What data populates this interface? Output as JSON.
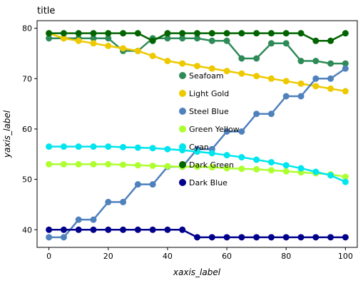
{
  "chart_data": {
    "type": "line",
    "title": "title",
    "xlabel": "xaxis_label",
    "ylabel": "yaxis_label",
    "xlim": [
      -4,
      104
    ],
    "ylim": [
      36.5,
      81.5
    ],
    "xticks": [
      0,
      20,
      40,
      60,
      80,
      100
    ],
    "yticks": [
      40,
      50,
      60,
      70,
      80
    ],
    "grid": false,
    "legend_position": "center-right",
    "x": [
      0,
      5,
      10,
      15,
      20,
      25,
      30,
      35,
      40,
      45,
      50,
      55,
      60,
      65,
      70,
      75,
      80,
      85,
      90,
      95,
      100
    ],
    "series": [
      {
        "name": "Seafoam",
        "color": "#2e8b57",
        "values": [
          78.0,
          78.0,
          78.0,
          78.0,
          78.0,
          75.5,
          75.5,
          78.0,
          78.0,
          78.0,
          78.0,
          77.5,
          77.5,
          74.0,
          74.0,
          77.0,
          77.0,
          73.5,
          73.5,
          73.0,
          73.0
        ]
      },
      {
        "name": "Light Gold",
        "color": "#eec900",
        "values": [
          79.0,
          78.0,
          77.5,
          77.0,
          76.5,
          76.0,
          75.5,
          74.5,
          73.5,
          73.0,
          72.5,
          72.0,
          71.5,
          71.0,
          70.5,
          70.0,
          69.5,
          69.0,
          68.5,
          68.0,
          67.5
        ]
      },
      {
        "name": "Steel Blue",
        "color": "#4f81bd",
        "values": [
          38.5,
          38.5,
          42.0,
          42.0,
          45.5,
          45.5,
          49.0,
          49.0,
          52.5,
          52.5,
          56.0,
          56.0,
          59.5,
          59.5,
          63.0,
          63.0,
          66.5,
          66.5,
          70.0,
          70.0,
          72.0
        ]
      },
      {
        "name": "Green Yellow",
        "color": "#adff2f",
        "values": [
          53.0,
          53.0,
          53.0,
          53.0,
          53.0,
          52.9,
          52.8,
          52.7,
          52.6,
          52.5,
          52.5,
          52.4,
          52.2,
          52.1,
          52.0,
          51.8,
          51.6,
          51.4,
          51.2,
          51.0,
          50.5
        ]
      },
      {
        "name": "Cyan",
        "color": "#00e5ee",
        "values": [
          56.5,
          56.5,
          56.5,
          56.5,
          56.5,
          56.4,
          56.3,
          56.2,
          56.0,
          55.8,
          55.5,
          55.2,
          54.8,
          54.4,
          53.9,
          53.4,
          52.8,
          52.2,
          51.5,
          50.8,
          49.5
        ]
      },
      {
        "name": "Dark Green",
        "color": "#006400",
        "values": [
          79.0,
          79.0,
          79.0,
          79.0,
          79.0,
          79.0,
          79.0,
          77.5,
          79.0,
          79.0,
          79.0,
          79.0,
          79.0,
          79.0,
          79.0,
          79.0,
          79.0,
          79.0,
          77.5,
          77.5,
          79.0
        ]
      },
      {
        "name": "Dark Blue",
        "color": "#00008b",
        "values": [
          40.0,
          40.0,
          40.0,
          40.0,
          40.0,
          40.0,
          40.0,
          40.0,
          40.0,
          40.0,
          38.5,
          38.5,
          38.5,
          38.5,
          38.5,
          38.5,
          38.5,
          38.5,
          38.5,
          38.5,
          38.5
        ]
      }
    ],
    "legend": [
      "Seafoam",
      "Light Gold",
      "Steel Blue",
      "Green Yellow",
      "Cyan",
      "Dark Green",
      "Dark Blue"
    ]
  }
}
